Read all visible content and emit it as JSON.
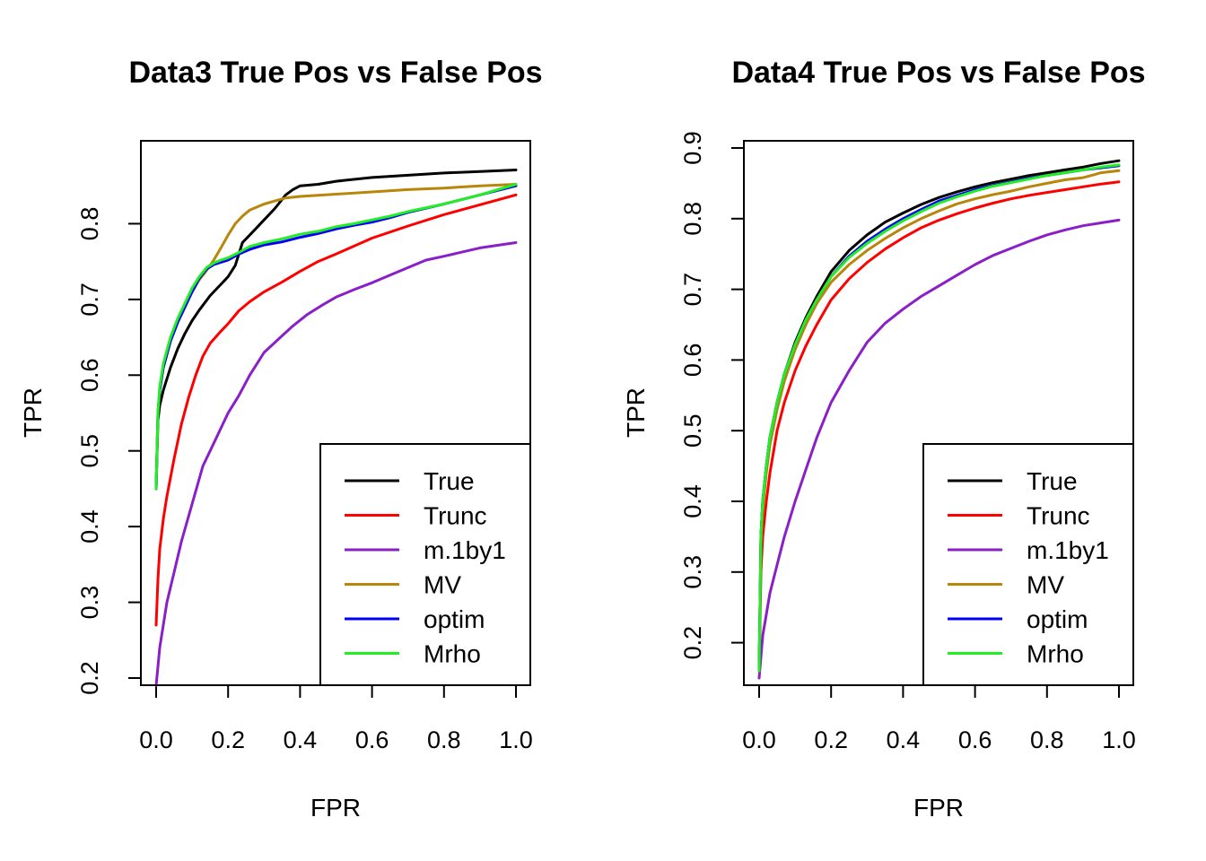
{
  "chart_data": [
    {
      "type": "line",
      "title": "Data3 True Pos vs False Pos",
      "xlabel": "FPR",
      "ylabel": "TPR",
      "xlim": [
        0,
        1
      ],
      "ylim": [
        0.2,
        0.9
      ],
      "xticks": [
        "0.0",
        "0.2",
        "0.4",
        "0.6",
        "0.8",
        "1.0"
      ],
      "yticks": [
        "0.2",
        "0.3",
        "0.4",
        "0.5",
        "0.6",
        "0.7",
        "0.8"
      ],
      "legend_position": "bottom-right",
      "series": [
        {
          "name": "True",
          "color": "#000000",
          "x": [
            0,
            0.005,
            0.01,
            0.02,
            0.04,
            0.06,
            0.08,
            0.1,
            0.12,
            0.15,
            0.18,
            0.2,
            0.22,
            0.24,
            0.26,
            0.28,
            0.3,
            0.33,
            0.36,
            0.38,
            0.4,
            0.45,
            0.5,
            0.6,
            0.7,
            0.8,
            0.9,
            1.0
          ],
          "y": [
            0.45,
            0.54,
            0.56,
            0.58,
            0.61,
            0.635,
            0.655,
            0.672,
            0.686,
            0.705,
            0.72,
            0.73,
            0.745,
            0.775,
            0.785,
            0.795,
            0.805,
            0.82,
            0.838,
            0.845,
            0.85,
            0.852,
            0.856,
            0.861,
            0.864,
            0.867,
            0.869,
            0.871
          ]
        },
        {
          "name": "Trunc",
          "color": "#ff0000",
          "x": [
            0,
            0.005,
            0.01,
            0.02,
            0.03,
            0.05,
            0.07,
            0.09,
            0.11,
            0.13,
            0.15,
            0.18,
            0.2,
            0.23,
            0.26,
            0.3,
            0.35,
            0.4,
            0.45,
            0.5,
            0.6,
            0.7,
            0.8,
            0.9,
            1.0
          ],
          "y": [
            0.27,
            0.33,
            0.37,
            0.41,
            0.44,
            0.49,
            0.535,
            0.57,
            0.6,
            0.625,
            0.642,
            0.658,
            0.668,
            0.685,
            0.697,
            0.71,
            0.723,
            0.737,
            0.75,
            0.76,
            0.781,
            0.797,
            0.812,
            0.825,
            0.838
          ]
        },
        {
          "name": "m.1by1",
          "color": "#8b1fc7",
          "x": [
            0,
            0.005,
            0.01,
            0.02,
            0.03,
            0.05,
            0.07,
            0.1,
            0.13,
            0.15,
            0.18,
            0.2,
            0.23,
            0.26,
            0.3,
            0.35,
            0.38,
            0.42,
            0.46,
            0.5,
            0.55,
            0.6,
            0.65,
            0.7,
            0.75,
            0.8,
            0.9,
            1.0
          ],
          "y": [
            0.19,
            0.215,
            0.24,
            0.27,
            0.3,
            0.34,
            0.38,
            0.43,
            0.48,
            0.5,
            0.53,
            0.55,
            0.573,
            0.6,
            0.63,
            0.652,
            0.665,
            0.68,
            0.692,
            0.703,
            0.713,
            0.722,
            0.732,
            0.742,
            0.752,
            0.757,
            0.768,
            0.775
          ]
        },
        {
          "name": "MV",
          "color": "#b8860b",
          "x": [
            0,
            0.005,
            0.01,
            0.02,
            0.04,
            0.06,
            0.08,
            0.1,
            0.12,
            0.14,
            0.16,
            0.18,
            0.2,
            0.22,
            0.24,
            0.26,
            0.28,
            0.3,
            0.33,
            0.36,
            0.4,
            0.5,
            0.6,
            0.7,
            0.8,
            0.9,
            1.0
          ],
          "y": [
            0.45,
            0.55,
            0.58,
            0.61,
            0.645,
            0.67,
            0.695,
            0.71,
            0.726,
            0.738,
            0.752,
            0.768,
            0.785,
            0.8,
            0.81,
            0.818,
            0.822,
            0.826,
            0.83,
            0.834,
            0.836,
            0.839,
            0.842,
            0.845,
            0.847,
            0.85,
            0.852
          ]
        },
        {
          "name": "optim",
          "color": "#0000ff",
          "x": [
            0,
            0.005,
            0.01,
            0.02,
            0.04,
            0.06,
            0.08,
            0.1,
            0.12,
            0.14,
            0.16,
            0.18,
            0.2,
            0.23,
            0.26,
            0.3,
            0.35,
            0.4,
            0.45,
            0.5,
            0.55,
            0.6,
            0.65,
            0.7,
            0.8,
            0.9,
            1.0
          ],
          "y": [
            0.45,
            0.55,
            0.58,
            0.61,
            0.645,
            0.67,
            0.69,
            0.71,
            0.728,
            0.74,
            0.746,
            0.749,
            0.752,
            0.76,
            0.766,
            0.772,
            0.776,
            0.782,
            0.787,
            0.793,
            0.798,
            0.802,
            0.808,
            0.815,
            0.826,
            0.838,
            0.85
          ]
        },
        {
          "name": "Mrho",
          "color": "#22ee22",
          "x": [
            0,
            0.005,
            0.01,
            0.02,
            0.04,
            0.06,
            0.08,
            0.1,
            0.12,
            0.14,
            0.16,
            0.18,
            0.2,
            0.23,
            0.26,
            0.3,
            0.35,
            0.4,
            0.45,
            0.5,
            0.55,
            0.6,
            0.65,
            0.7,
            0.8,
            0.9,
            1.0
          ],
          "y": [
            0.45,
            0.55,
            0.585,
            0.615,
            0.65,
            0.675,
            0.695,
            0.715,
            0.73,
            0.742,
            0.748,
            0.752,
            0.755,
            0.762,
            0.77,
            0.775,
            0.78,
            0.786,
            0.79,
            0.796,
            0.8,
            0.805,
            0.81,
            0.816,
            0.826,
            0.838,
            0.852
          ]
        }
      ]
    },
    {
      "type": "line",
      "title": "Data4 True Pos vs False Pos",
      "xlabel": "FPR",
      "ylabel": "TPR",
      "xlim": [
        0,
        1
      ],
      "ylim": [
        0.15,
        0.9
      ],
      "xticks": [
        "0.0",
        "0.2",
        "0.4",
        "0.6",
        "0.8",
        "1.0"
      ],
      "yticks": [
        "0.2",
        "0.3",
        "0.4",
        "0.5",
        "0.6",
        "0.7",
        "0.8",
        "0.9"
      ],
      "legend_position": "bottom-right",
      "series": [
        {
          "name": "True",
          "color": "#000000",
          "x": [
            0,
            0.005,
            0.01,
            0.02,
            0.03,
            0.05,
            0.07,
            0.1,
            0.13,
            0.16,
            0.2,
            0.25,
            0.3,
            0.35,
            0.4,
            0.45,
            0.5,
            0.55,
            0.6,
            0.65,
            0.7,
            0.75,
            0.8,
            0.85,
            0.9,
            0.95,
            1.0
          ],
          "y": [
            0.16,
            0.35,
            0.4,
            0.45,
            0.49,
            0.54,
            0.58,
            0.625,
            0.66,
            0.69,
            0.725,
            0.755,
            0.777,
            0.795,
            0.808,
            0.82,
            0.83,
            0.838,
            0.845,
            0.851,
            0.856,
            0.861,
            0.865,
            0.869,
            0.873,
            0.878,
            0.882
          ]
        },
        {
          "name": "Trunc",
          "color": "#ff0000",
          "x": [
            0,
            0.005,
            0.01,
            0.02,
            0.03,
            0.05,
            0.07,
            0.1,
            0.13,
            0.16,
            0.2,
            0.25,
            0.3,
            0.35,
            0.4,
            0.45,
            0.5,
            0.55,
            0.6,
            0.65,
            0.7,
            0.75,
            0.8,
            0.85,
            0.9,
            0.95,
            1.0
          ],
          "y": [
            0.16,
            0.3,
            0.35,
            0.4,
            0.44,
            0.5,
            0.54,
            0.585,
            0.62,
            0.65,
            0.685,
            0.715,
            0.738,
            0.757,
            0.773,
            0.787,
            0.798,
            0.807,
            0.815,
            0.822,
            0.828,
            0.833,
            0.837,
            0.841,
            0.845,
            0.849,
            0.852
          ]
        },
        {
          "name": "m.1by1",
          "color": "#8b1fc7",
          "x": [
            0,
            0.005,
            0.01,
            0.02,
            0.03,
            0.05,
            0.07,
            0.1,
            0.13,
            0.16,
            0.2,
            0.25,
            0.3,
            0.35,
            0.4,
            0.45,
            0.5,
            0.55,
            0.6,
            0.65,
            0.7,
            0.75,
            0.8,
            0.85,
            0.9,
            0.95,
            1.0
          ],
          "y": [
            0.15,
            0.18,
            0.21,
            0.24,
            0.27,
            0.31,
            0.35,
            0.4,
            0.445,
            0.49,
            0.54,
            0.585,
            0.625,
            0.652,
            0.672,
            0.69,
            0.705,
            0.72,
            0.735,
            0.748,
            0.758,
            0.768,
            0.777,
            0.784,
            0.79,
            0.794,
            0.798
          ]
        },
        {
          "name": "MV",
          "color": "#b8860b",
          "x": [
            0,
            0.005,
            0.01,
            0.02,
            0.03,
            0.05,
            0.07,
            0.1,
            0.13,
            0.16,
            0.2,
            0.25,
            0.3,
            0.35,
            0.4,
            0.45,
            0.5,
            0.55,
            0.6,
            0.65,
            0.7,
            0.75,
            0.8,
            0.85,
            0.9,
            0.93,
            0.95,
            1.0
          ],
          "y": [
            0.16,
            0.34,
            0.39,
            0.44,
            0.48,
            0.53,
            0.57,
            0.615,
            0.65,
            0.68,
            0.71,
            0.735,
            0.755,
            0.772,
            0.787,
            0.8,
            0.811,
            0.821,
            0.828,
            0.834,
            0.839,
            0.845,
            0.85,
            0.855,
            0.858,
            0.862,
            0.865,
            0.868
          ]
        },
        {
          "name": "optim",
          "color": "#0000ff",
          "x": [
            0,
            0.005,
            0.01,
            0.02,
            0.03,
            0.05,
            0.07,
            0.1,
            0.13,
            0.16,
            0.2,
            0.25,
            0.3,
            0.35,
            0.4,
            0.45,
            0.5,
            0.55,
            0.6,
            0.65,
            0.7,
            0.75,
            0.8,
            0.85,
            0.9,
            0.95,
            1.0
          ],
          "y": [
            0.16,
            0.35,
            0.4,
            0.45,
            0.49,
            0.54,
            0.58,
            0.622,
            0.657,
            0.685,
            0.718,
            0.747,
            0.768,
            0.785,
            0.8,
            0.813,
            0.825,
            0.833,
            0.841,
            0.847,
            0.852,
            0.857,
            0.861,
            0.865,
            0.869,
            0.872,
            0.875
          ]
        },
        {
          "name": "Mrho",
          "color": "#22ee22",
          "x": [
            0,
            0.005,
            0.01,
            0.02,
            0.03,
            0.05,
            0.07,
            0.1,
            0.13,
            0.16,
            0.2,
            0.25,
            0.3,
            0.35,
            0.4,
            0.45,
            0.5,
            0.55,
            0.6,
            0.65,
            0.7,
            0.75,
            0.8,
            0.85,
            0.9,
            0.95,
            1.0
          ],
          "y": [
            0.16,
            0.35,
            0.4,
            0.45,
            0.49,
            0.54,
            0.58,
            0.622,
            0.657,
            0.685,
            0.718,
            0.745,
            0.765,
            0.782,
            0.797,
            0.81,
            0.822,
            0.831,
            0.839,
            0.846,
            0.851,
            0.856,
            0.861,
            0.865,
            0.869,
            0.873,
            0.876
          ]
        }
      ]
    }
  ]
}
